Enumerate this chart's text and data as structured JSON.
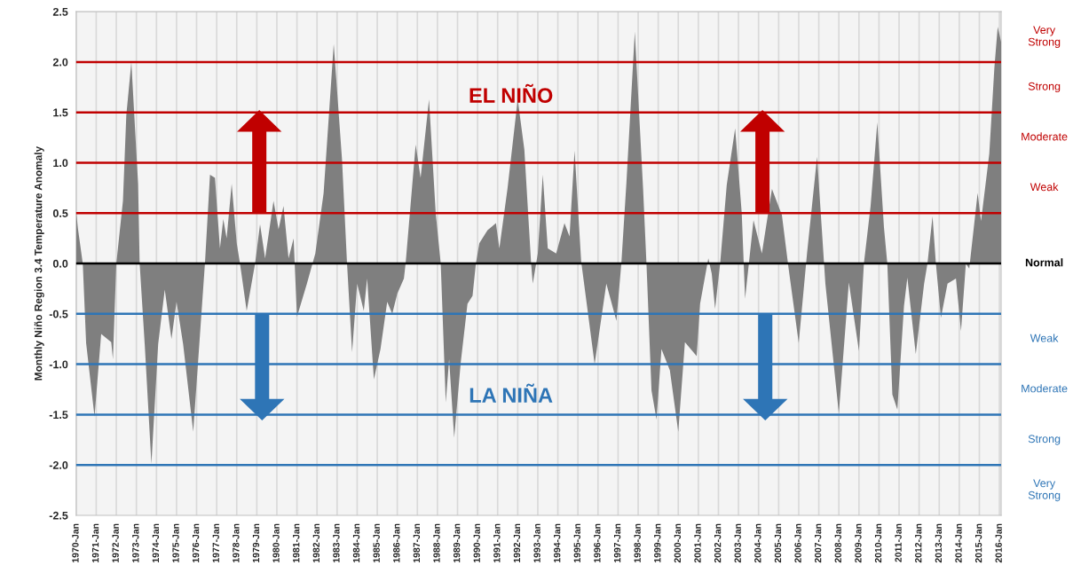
{
  "chart_data": {
    "type": "area",
    "ylabel": "Monthly Niño Region 3.4 Temperature Anomaly",
    "x": [
      "1970-01",
      "1970-02",
      "1970-05",
      "1970-07",
      "1970-12",
      "1971-04",
      "1971-10",
      "1971-11",
      "1972-01",
      "1972-05",
      "1972-07",
      "1972-10",
      "1973-02",
      "1973-03",
      "1973-06",
      "1973-10",
      "1974-02",
      "1974-06",
      "1974-10",
      "1975-01",
      "1975-05",
      "1975-11",
      "1976-06",
      "1976-09",
      "1976-12",
      "1977-03",
      "1977-05",
      "1977-07",
      "1977-10",
      "1978-01",
      "1978-03",
      "1978-07",
      "1978-12",
      "1979-03",
      "1979-06",
      "1979-11",
      "1980-02",
      "1980-05",
      "1980-08",
      "1980-11",
      "1981-01",
      "1981-07",
      "1981-12",
      "1982-05",
      "1982-11",
      "1983-04",
      "1983-07",
      "1983-10",
      "1984-01",
      "1984-05",
      "1984-07",
      "1984-11",
      "1985-03",
      "1985-07",
      "1985-10",
      "1986-01",
      "1986-05",
      "1986-06",
      "1986-12",
      "1987-03",
      "1987-08",
      "1987-12",
      "1988-03",
      "1988-06",
      "1988-08",
      "1988-11",
      "1989-03",
      "1989-07",
      "1989-10",
      "1989-12",
      "1990-02",
      "1990-07",
      "1990-12",
      "1991-02",
      "1991-07",
      "1992-01",
      "1992-05",
      "1992-09",
      "1992-10",
      "1993-01",
      "1993-04",
      "1993-07",
      "1993-12",
      "1994-05",
      "1994-08",
      "1994-11",
      "1995-03",
      "1995-11",
      "1996-06",
      "1996-12",
      "1997-03",
      "1997-06",
      "1997-11",
      "1998-04",
      "1998-06",
      "1998-09",
      "1998-12",
      "1999-03",
      "1999-08",
      "2000-01",
      "2000-05",
      "2000-12",
      "2001-02",
      "2001-07",
      "2001-09",
      "2001-11",
      "2002-02",
      "2002-06",
      "2002-11",
      "2003-03",
      "2003-05",
      "2003-10",
      "2004-03",
      "2004-09",
      "2005-03",
      "2005-07",
      "2006-01",
      "2006-06",
      "2006-12",
      "2007-05",
      "2008-01",
      "2008-07",
      "2009-01",
      "2009-04",
      "2009-08",
      "2009-12",
      "2010-04",
      "2010-06",
      "2010-09",
      "2010-12",
      "2011-04",
      "2011-06",
      "2011-11",
      "2012-04",
      "2012-06",
      "2012-09",
      "2012-11",
      "2013-02",
      "2013-06",
      "2013-11",
      "2014-02",
      "2014-05",
      "2014-07",
      "2014-12",
      "2015-02",
      "2015-07",
      "2015-10",
      "2015-12",
      "2016-02"
    ],
    "series": [
      {
        "color": "#7f7f7f",
        "values": [
          0.52,
          0.35,
          0.0,
          -0.79,
          -1.52,
          -0.7,
          -0.78,
          -0.95,
          0.0,
          0.62,
          1.47,
          2.0,
          0.79,
          0.0,
          -0.8,
          -1.99,
          -0.8,
          -0.26,
          -0.75,
          -0.38,
          -0.8,
          -1.67,
          0.0,
          0.88,
          0.85,
          0.15,
          0.44,
          0.25,
          0.79,
          0.2,
          0.0,
          -0.47,
          0.0,
          0.39,
          0.05,
          0.62,
          0.34,
          0.57,
          0.05,
          0.25,
          -0.53,
          -0.2,
          0.1,
          0.7,
          2.18,
          1.03,
          0.0,
          -0.88,
          -0.2,
          -0.47,
          -0.15,
          -1.15,
          -0.85,
          -0.38,
          -0.5,
          -0.3,
          -0.15,
          0.0,
          1.18,
          0.85,
          1.63,
          0.5,
          0.0,
          -1.38,
          -0.95,
          -1.73,
          -0.98,
          -0.4,
          -0.32,
          0.0,
          0.2,
          0.33,
          0.4,
          0.15,
          0.75,
          1.63,
          1.13,
          0.0,
          -0.2,
          0.1,
          0.88,
          0.15,
          0.1,
          0.4,
          0.27,
          1.12,
          0.02,
          -1.0,
          -0.2,
          -0.57,
          0.0,
          0.8,
          2.3,
          0.74,
          0.0,
          -1.26,
          -1.55,
          -0.85,
          -1.06,
          -1.67,
          -0.78,
          -0.92,
          -0.4,
          0.05,
          -0.1,
          -0.45,
          0.0,
          0.78,
          1.34,
          0.5,
          -0.35,
          0.43,
          0.1,
          0.74,
          0.48,
          -0.05,
          -0.79,
          0.1,
          1.06,
          -0.2,
          -1.49,
          -0.19,
          -0.87,
          0.0,
          0.57,
          1.4,
          0.36,
          0.0,
          -1.3,
          -1.45,
          -0.42,
          -0.14,
          -0.9,
          -0.2,
          0.0,
          0.47,
          0.0,
          -0.54,
          -0.2,
          -0.15,
          -0.67,
          0.0,
          -0.05,
          0.7,
          0.42,
          1.09,
          1.94,
          2.35,
          2.2
        ]
      }
    ],
    "xlim": [
      "1970-01",
      "2016-02"
    ],
    "xticks": [
      {
        "value": "1970-01",
        "label": "1970-Jan"
      },
      {
        "value": "1971-01",
        "label": "1971-Jan"
      },
      {
        "value": "1972-01",
        "label": "1972-Jan"
      },
      {
        "value": "1973-01",
        "label": "1973-Jan"
      },
      {
        "value": "1974-01",
        "label": "1974-Jan"
      },
      {
        "value": "1975-01",
        "label": "1975-Jan"
      },
      {
        "value": "1976-01",
        "label": "1976-Jan"
      },
      {
        "value": "1977-01",
        "label": "1977-Jan"
      },
      {
        "value": "1978-01",
        "label": "1978-Jan"
      },
      {
        "value": "1979-01",
        "label": "1979-Jan"
      },
      {
        "value": "1980-01",
        "label": "1980-Jan"
      },
      {
        "value": "1981-01",
        "label": "1981-Jan"
      },
      {
        "value": "1982-01",
        "label": "1982-Jan"
      },
      {
        "value": "1983-01",
        "label": "1983-Jan"
      },
      {
        "value": "1984-01",
        "label": "1984-Jan"
      },
      {
        "value": "1985-01",
        "label": "1985-Jan"
      },
      {
        "value": "1986-01",
        "label": "1986-Jan"
      },
      {
        "value": "1987-01",
        "label": "1987-Jan"
      },
      {
        "value": "1988-01",
        "label": "1988-Jan"
      },
      {
        "value": "1989-01",
        "label": "1989-Jan"
      },
      {
        "value": "1990-01",
        "label": "1990-Jan"
      },
      {
        "value": "1991-01",
        "label": "1991-Jan"
      },
      {
        "value": "1992-01",
        "label": "1992-Jan"
      },
      {
        "value": "1993-01",
        "label": "1993-Jan"
      },
      {
        "value": "1994-01",
        "label": "1994-Jan"
      },
      {
        "value": "1995-01",
        "label": "1995-Jan"
      },
      {
        "value": "1996-01",
        "label": "1996-Jan"
      },
      {
        "value": "1997-01",
        "label": "1997-Jan"
      },
      {
        "value": "1998-01",
        "label": "1998-Jan"
      },
      {
        "value": "1999-01",
        "label": "1999-Jan"
      },
      {
        "value": "2000-01",
        "label": "2000-Jan"
      },
      {
        "value": "2001-01",
        "label": "2001-Jan"
      },
      {
        "value": "2002-01",
        "label": "2002-Jan"
      },
      {
        "value": "2003-01",
        "label": "2003-Jan"
      },
      {
        "value": "2004-01",
        "label": "2004-Jan"
      },
      {
        "value": "2005-01",
        "label": "2005-Jan"
      },
      {
        "value": "2006-01",
        "label": "2006-Jan"
      },
      {
        "value": "2007-01",
        "label": "2007-Jan"
      },
      {
        "value": "2008-01",
        "label": "2008-Jan"
      },
      {
        "value": "2009-01",
        "label": "2009-Jan"
      },
      {
        "value": "2010-01",
        "label": "2010-Jan"
      },
      {
        "value": "2011-01",
        "label": "2011-Jan"
      },
      {
        "value": "2012-01",
        "label": "2012-Jan"
      },
      {
        "value": "2013-01",
        "label": "2013-Jan"
      },
      {
        "value": "2014-01",
        "label": "2014-Jan"
      },
      {
        "value": "2015-01",
        "label": "2015-Jan"
      },
      {
        "value": "2016-01",
        "label": "2016-Jan"
      }
    ],
    "ylim": [
      -2.5,
      2.5
    ],
    "yticks": [
      -2.5,
      {
        "value": -2,
        "label": "-2.0"
      },
      -1.5,
      {
        "value": -1,
        "label": "-1.0"
      },
      -0.5,
      {
        "value": 0,
        "label": "0.0"
      },
      0.5,
      {
        "value": 1,
        "label": "1.0"
      },
      1.5,
      {
        "value": 2,
        "label": "2.0"
      },
      2.5
    ],
    "grid": "x",
    "ref_lines": [
      {
        "axis": "y",
        "value": 2.0,
        "color": "#c00000"
      },
      {
        "axis": "y",
        "value": 1.5,
        "color": "#c00000"
      },
      {
        "axis": "y",
        "value": 1.0,
        "color": "#c00000"
      },
      {
        "axis": "y",
        "value": 0.5,
        "color": "#c00000"
      },
      {
        "axis": "y",
        "value": 0,
        "label": "Normal",
        "color": "#000000"
      },
      {
        "axis": "y",
        "value": -0.5,
        "color": "#2e75b6"
      },
      {
        "axis": "y",
        "value": -1.0,
        "color": "#2e75b6"
      },
      {
        "axis": "y",
        "value": -1.5,
        "color": "#2e75b6"
      },
      {
        "axis": "y",
        "value": -2.0,
        "color": "#2e75b6"
      }
    ],
    "annotations": [
      "EL NIÑO",
      "LA NIÑA",
      "Very\nStrong",
      "Strong",
      "Moderate",
      "Weak",
      "Weak",
      "Moderate",
      "Strong",
      "Very\nStrong"
    ]
  }
}
